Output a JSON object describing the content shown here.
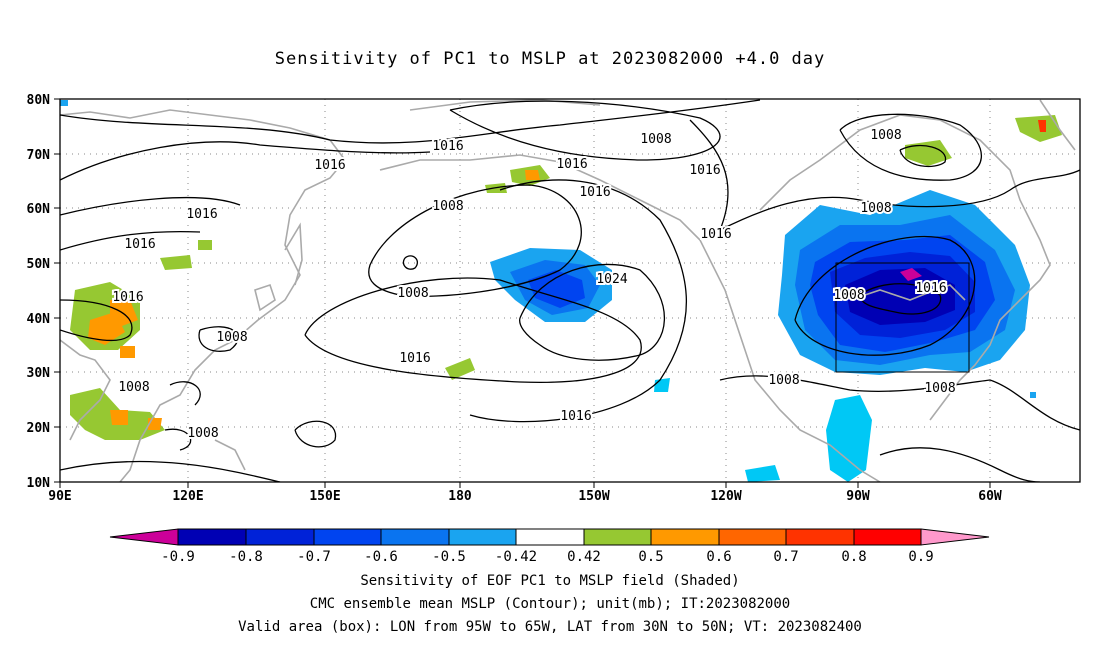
{
  "title": "Sensitivity of PC1 to MSLP at 2023082000 +4.0 day",
  "map": {
    "lat_labels": [
      "80N",
      "70N",
      "60N",
      "50N",
      "40N",
      "30N",
      "20N",
      "10N"
    ],
    "lon_labels": [
      "90E",
      "120E",
      "150E",
      "180",
      "150W",
      "120W",
      "90W",
      "60W"
    ],
    "valid_box": {
      "lon": [
        "95W",
        "65W"
      ],
      "lat": [
        "30N",
        "50N"
      ]
    }
  },
  "contour_labels": [
    {
      "text": "1016"
    },
    {
      "text": "1008"
    },
    {
      "text": "1016"
    },
    {
      "text": "1016"
    },
    {
      "text": "1016"
    },
    {
      "text": "1008"
    },
    {
      "text": "1016"
    },
    {
      "text": "1016"
    },
    {
      "text": "1008"
    },
    {
      "text": "1016"
    },
    {
      "text": "1024"
    },
    {
      "text": "1016"
    },
    {
      "text": "1016"
    },
    {
      "text": "1008"
    },
    {
      "text": "1008"
    },
    {
      "text": "1008"
    },
    {
      "text": "1008"
    },
    {
      "text": "1016"
    },
    {
      "text": "1008"
    },
    {
      "text": "1008"
    },
    {
      "text": "1016"
    },
    {
      "text": "1008"
    },
    {
      "text": "1008"
    }
  ],
  "colorbar": {
    "labels": [
      "-0.9",
      "-0.8",
      "-0.7",
      "-0.6",
      "-0.5",
      "-0.42",
      "0.42",
      "0.5",
      "0.6",
      "0.7",
      "0.8",
      "0.9"
    ],
    "colors": [
      "#cc0099",
      "#0000b4",
      "#0022d8",
      "#0044f0",
      "#0a74f0",
      "#1aa4f0",
      "#00c8f5",
      "#ffffff",
      "#96c832",
      "#ff9900",
      "#ff6600",
      "#ff3300",
      "#ff0000",
      "#ff99cc"
    ]
  },
  "captions": [
    "Sensitivity of EOF PC1 to MSLP field (Shaded)",
    "CMC ensemble mean MSLP (Contour); unit(mb); IT:2023082000",
    "Valid area (box): LON from 95W to 65W, LAT from 30N to 50N; VT: 2023082400"
  ]
}
